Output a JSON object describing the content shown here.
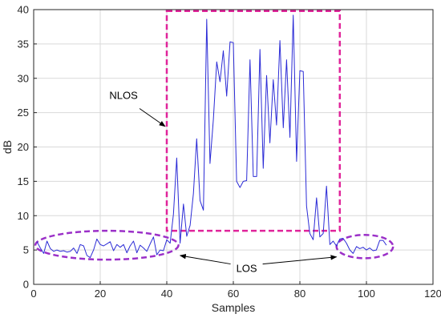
{
  "chart_data": {
    "type": "line",
    "title": "",
    "xlabel": "Samples",
    "ylabel": "dB",
    "xlim": [
      0,
      120
    ],
    "ylim": [
      0,
      40
    ],
    "xticks": [
      0,
      20,
      40,
      60,
      80,
      100,
      120
    ],
    "yticks": [
      0,
      5,
      10,
      15,
      20,
      25,
      30,
      35,
      40
    ],
    "grid": true,
    "colors": {
      "line": "#2b2bd6",
      "nlos_box": "#e0249a",
      "los_ellipse": "#9b30c8",
      "grid": "#d9d9d9"
    },
    "series": [
      {
        "values": [
          [
            1,
            6.2
          ],
          [
            2,
            5.3
          ],
          [
            3,
            4.5
          ],
          [
            4,
            6.3
          ],
          [
            5,
            5.2
          ],
          [
            6,
            4.8
          ],
          [
            7,
            5.0
          ],
          [
            8,
            4.8
          ],
          [
            9,
            4.9
          ],
          [
            10,
            4.7
          ],
          [
            11,
            4.8
          ],
          [
            12,
            5.3
          ],
          [
            13,
            4.5
          ],
          [
            14,
            5.8
          ],
          [
            15,
            5.6
          ],
          [
            16,
            4.2
          ],
          [
            17,
            3.9
          ],
          [
            18,
            5.0
          ],
          [
            19,
            6.6
          ],
          [
            20,
            5.8
          ],
          [
            21,
            5.6
          ],
          [
            22,
            5.9
          ],
          [
            23,
            6.2
          ],
          [
            24,
            4.9
          ],
          [
            25,
            5.8
          ],
          [
            26,
            5.4
          ],
          [
            27,
            5.8
          ],
          [
            28,
            4.6
          ],
          [
            29,
            5.6
          ],
          [
            30,
            6.3
          ],
          [
            31,
            4.6
          ],
          [
            32,
            5.7
          ],
          [
            33,
            5.3
          ],
          [
            34,
            4.8
          ],
          [
            35,
            5.9
          ],
          [
            36,
            6.9
          ],
          [
            37,
            4.3
          ],
          [
            38,
            5.0
          ],
          [
            39,
            4.9
          ],
          [
            40,
            6.5
          ],
          [
            41,
            6.0
          ],
          [
            42,
            10.2
          ],
          [
            43,
            18.4
          ],
          [
            44,
            6.0
          ],
          [
            45,
            11.7
          ],
          [
            46,
            7.0
          ],
          [
            47,
            8.6
          ],
          [
            48,
            13.2
          ],
          [
            49,
            21.2
          ],
          [
            50,
            12.2
          ],
          [
            51,
            10.8
          ],
          [
            52,
            38.6
          ],
          [
            53,
            17.6
          ],
          [
            54,
            24.0
          ],
          [
            55,
            32.4
          ],
          [
            56,
            29.5
          ],
          [
            57,
            34.0
          ],
          [
            58,
            27.4
          ],
          [
            59,
            35.3
          ],
          [
            60,
            35.2
          ],
          [
            61,
            15.0
          ],
          [
            62,
            14.1
          ],
          [
            63,
            15.0
          ],
          [
            64,
            15.1
          ],
          [
            65,
            32.7
          ],
          [
            66,
            15.7
          ],
          [
            67,
            15.7
          ],
          [
            68,
            34.2
          ],
          [
            69,
            16.9
          ],
          [
            70,
            30.4
          ],
          [
            71,
            20.6
          ],
          [
            72,
            29.8
          ],
          [
            73,
            23.2
          ],
          [
            74,
            35.5
          ],
          [
            75,
            22.8
          ],
          [
            76,
            32.7
          ],
          [
            77,
            21.4
          ],
          [
            78,
            39.2
          ],
          [
            79,
            17.9
          ],
          [
            80,
            31.1
          ],
          [
            81,
            31.0
          ],
          [
            82,
            11.4
          ],
          [
            83,
            7.4
          ],
          [
            84,
            6.5
          ],
          [
            85,
            12.6
          ],
          [
            86,
            6.9
          ],
          [
            87,
            7.4
          ],
          [
            88,
            14.3
          ],
          [
            89,
            5.8
          ],
          [
            90,
            6.3
          ],
          [
            91,
            5.6
          ],
          [
            92,
            6.6
          ],
          [
            93,
            6.7
          ],
          [
            94,
            6.0
          ],
          [
            95,
            5.0
          ],
          [
            96,
            4.5
          ],
          [
            97,
            5.5
          ],
          [
            98,
            5.2
          ],
          [
            99,
            5.4
          ],
          [
            100,
            5.0
          ],
          [
            101,
            5.3
          ],
          [
            102,
            4.9
          ],
          [
            103,
            5.0
          ],
          [
            104,
            6.4
          ],
          [
            105,
            6.4
          ],
          [
            106,
            5.7
          ]
        ]
      }
    ],
    "annotations": [
      {
        "text": "NLOS",
        "label_x": 27,
        "label_y": 27.0,
        "arrow_to": [
          39.5,
          23.0
        ]
      },
      {
        "text": "LOS",
        "label_x": 64,
        "label_y": 1.8,
        "arrows_to": [
          [
            44,
            4.2
          ],
          [
            91,
            4.0
          ]
        ]
      }
    ],
    "nlos_box": {
      "x0": 40,
      "x1": 92,
      "y0": 7.8,
      "y1": 39.8
    },
    "los_regions": [
      {
        "cx": 22,
        "cy": 5.7,
        "rx": 21.5,
        "ry": 2.1
      },
      {
        "cx": 99.5,
        "cy": 5.5,
        "rx": 8.5,
        "ry": 1.7
      }
    ]
  }
}
